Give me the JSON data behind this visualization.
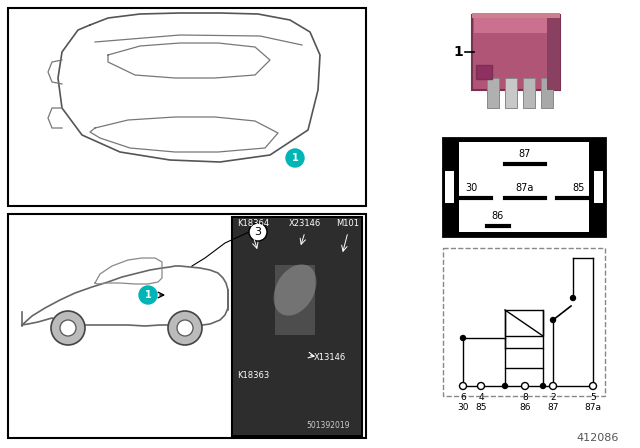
{
  "background_color": "#ffffff",
  "relay_color": "#c06080",
  "teal_color": "#00b5b5",
  "diagram_number": "412086",
  "photo_number": "501392019",
  "component_labels": [
    "K18364",
    "X23146",
    "M101",
    "K18363",
    "X13146"
  ],
  "relay_pins_top": "87",
  "relay_pins_mid_left": "30",
  "relay_pins_mid_center": "87a",
  "relay_pins_mid_right": "85",
  "relay_pins_bot": "86",
  "pin_x_labels": [
    "6",
    "4",
    "8",
    "2",
    "5"
  ],
  "pin_y_labels": [
    "30",
    "85",
    "86",
    "87",
    "87a"
  ]
}
